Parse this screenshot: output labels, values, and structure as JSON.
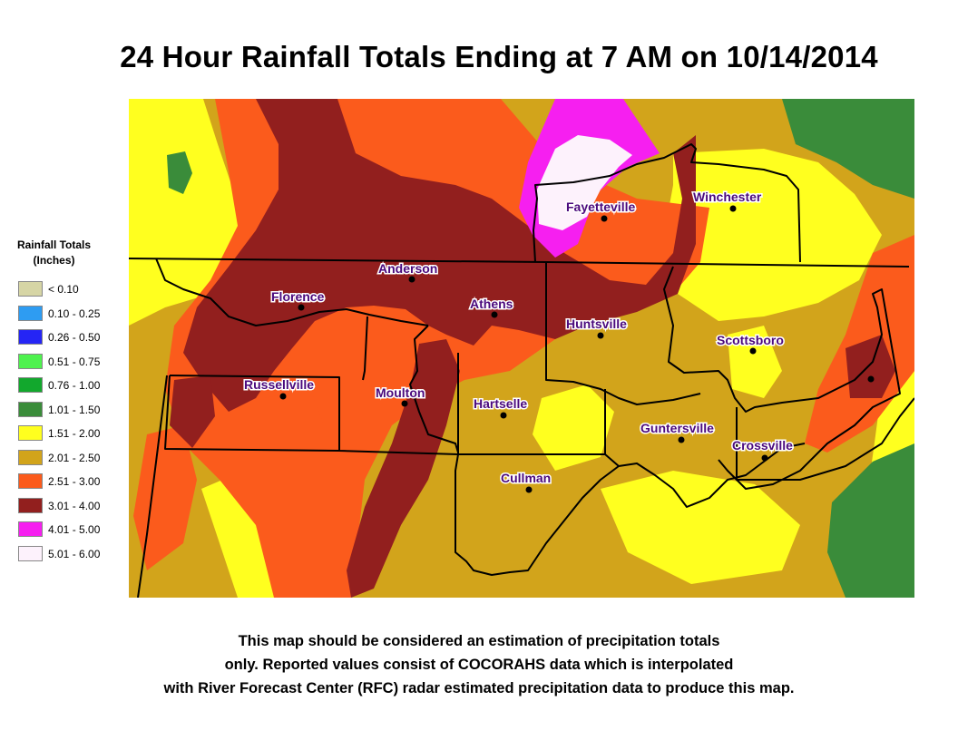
{
  "title": "24 Hour Rainfall Totals Ending at 7 AM on 10/14/2014",
  "legend": {
    "title_line1": "Rainfall Totals",
    "title_line2": "(Inches)",
    "items": [
      {
        "label": "< 0.10",
        "color": "#d6d5a5"
      },
      {
        "label": "0.10 - 0.25",
        "color": "#2e9cf2"
      },
      {
        "label": "0.26 - 0.50",
        "color": "#2525f5"
      },
      {
        "label": "0.51 - 0.75",
        "color": "#4ef24e"
      },
      {
        "label": "0.76 - 1.00",
        "color": "#12a82d"
      },
      {
        "label": "1.01 - 1.50",
        "color": "#3a8c3a"
      },
      {
        "label": "1.51 - 2.00",
        "color": "#ffff1f"
      },
      {
        "label": "2.01 - 2.50",
        "color": "#d2a41b"
      },
      {
        "label": "2.51 - 3.00",
        "color": "#fb5b1c"
      },
      {
        "label": "3.01 - 4.00",
        "color": "#921f1e"
      },
      {
        "label": "4.01 - 5.00",
        "color": "#f61ff0"
      },
      {
        "label": "5.01 - 6.00",
        "color": "#fdf2fc"
      }
    ]
  },
  "cities": [
    {
      "name": "Fayetteville"
    },
    {
      "name": "Winchester"
    },
    {
      "name": "Anderson"
    },
    {
      "name": "Florence"
    },
    {
      "name": "Athens"
    },
    {
      "name": "Huntsville"
    },
    {
      "name": "Scottsboro"
    },
    {
      "name": "Russellville"
    },
    {
      "name": "Moulton"
    },
    {
      "name": "Hartselle"
    },
    {
      "name": "Guntersville"
    },
    {
      "name": "Crossville"
    },
    {
      "name": "Cullman"
    }
  ],
  "disclaimer": {
    "line1": "This map should be considered an estimation of precipitation totals",
    "line2": "only.  Reported values consist of COCORAHS data which is  interpolated",
    "line3": "with River Forecast Center (RFC) radar estimated precipitation data to produce this map."
  }
}
